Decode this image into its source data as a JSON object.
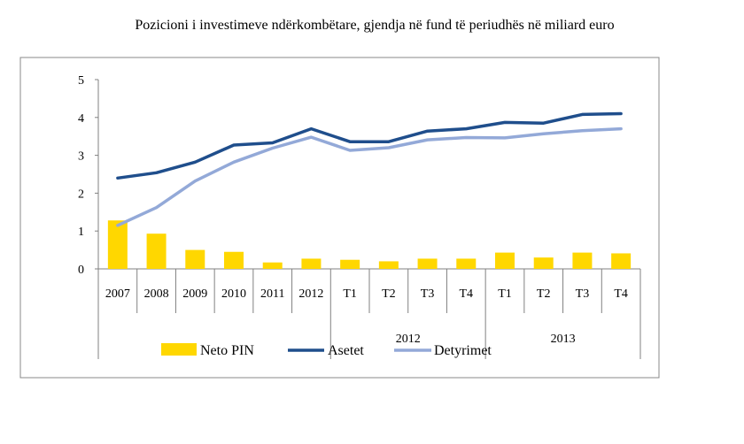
{
  "chart_data": {
    "type": "bar+line",
    "title": "Pozicioni i investimeve ndërkombëtare, gjendja në fund të periudhës në miliard euro",
    "categories": [
      "2007",
      "2008",
      "2009",
      "2010",
      "2011",
      "2012",
      "T1",
      "T2",
      "T3",
      "T4",
      "T1",
      "T2",
      "T3",
      "T4"
    ],
    "groups": [
      {
        "label": "2012",
        "categories": [
          "T1",
          "T2",
          "T3",
          "T4"
        ]
      },
      {
        "label": "2013",
        "categories": [
          "T1",
          "T2",
          "T3",
          "T4"
        ]
      }
    ],
    "ylim": [
      0,
      5
    ],
    "yticks": [
      0,
      1,
      2,
      3,
      4,
      5
    ],
    "grid": false,
    "legend_position": "bottom",
    "series": [
      {
        "name": "Neto PIN",
        "type": "bar",
        "color": "#FFD700",
        "values": [
          1.28,
          0.93,
          0.5,
          0.45,
          0.17,
          0.27,
          0.24,
          0.2,
          0.27,
          0.27,
          0.43,
          0.3,
          0.43,
          0.41
        ]
      },
      {
        "name": "Asetet",
        "type": "line",
        "color": "#1F4E8C",
        "values": [
          2.4,
          2.54,
          2.82,
          3.27,
          3.33,
          3.7,
          3.36,
          3.36,
          3.64,
          3.7,
          3.87,
          3.85,
          4.08,
          4.1
        ]
      },
      {
        "name": "Detyrimet",
        "type": "line",
        "color": "#93A9D8",
        "values": [
          1.15,
          1.62,
          2.32,
          2.82,
          3.19,
          3.48,
          3.13,
          3.2,
          3.41,
          3.47,
          3.46,
          3.57,
          3.65,
          3.7
        ]
      }
    ]
  }
}
